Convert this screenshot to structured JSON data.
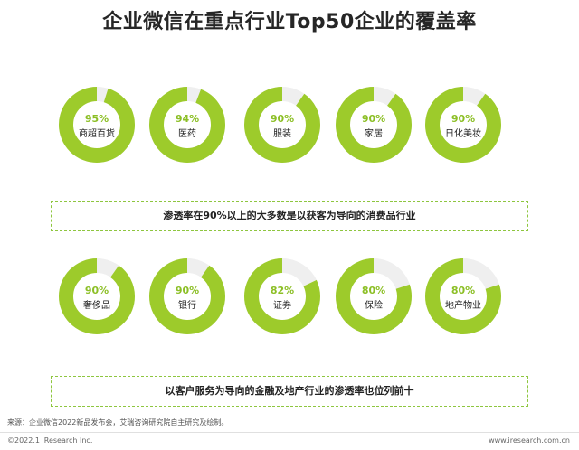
{
  "chart_data": {
    "type": "donut",
    "title": "企业微信在重点行业Top50企业的覆盖率",
    "unit": "%",
    "colors": {
      "filled": "#9dcb2b",
      "remainder": "#efefef"
    },
    "rows": [
      {
        "note": "渗透率在90%以上的大多数是以获客为导向的消费品行业",
        "items": [
          {
            "label": "95%",
            "value": 95,
            "category": "商超百货"
          },
          {
            "label": "94%",
            "value": 94,
            "category": "医药"
          },
          {
            "label": "90%",
            "value": 90,
            "category": "服装"
          },
          {
            "label": "90%",
            "value": 90,
            "category": "家居"
          },
          {
            "label": "90%",
            "value": 90,
            "category": "日化美妆"
          }
        ]
      },
      {
        "note": "以客户服务为导向的金融及地产行业的渗透率也位列前十",
        "items": [
          {
            "label": "90%",
            "value": 90,
            "category": "奢侈品"
          },
          {
            "label": "90%",
            "value": 90,
            "category": "银行"
          },
          {
            "label": "82%",
            "value": 82,
            "category": "证券"
          },
          {
            "label": "80%",
            "value": 80,
            "category": "保险"
          },
          {
            "label": "80%",
            "value": 80,
            "category": "地产物业"
          }
        ]
      }
    ]
  },
  "footer": {
    "source": "来源：企业微信2022新品发布会，艾瑞咨询研究院自主研究及绘制。",
    "copyright": "©2022.1 iResearch Inc.",
    "website": "www.iresearch.com.cn"
  }
}
